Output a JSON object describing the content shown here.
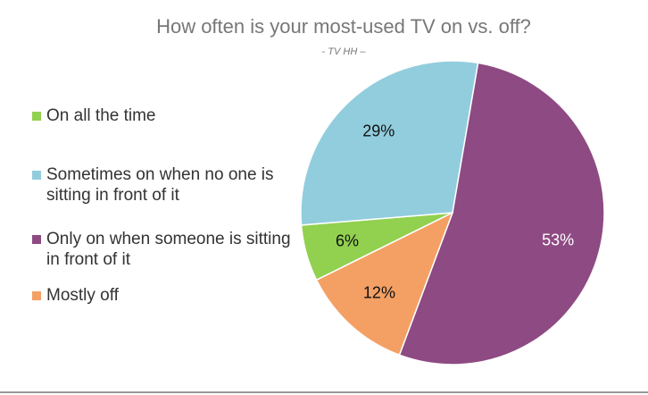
{
  "chart_data": {
    "type": "pie",
    "title": "How often is your most-used TV on vs. off?",
    "subtitle": "- TV HH –",
    "series": [
      {
        "name": "On all the time",
        "color": "#92d050",
        "values": [
          6
        ],
        "value_labels": [
          "6%"
        ]
      },
      {
        "name": "Sometimes on when no one is sitting in front of it",
        "color": "#92cddd",
        "values": [
          29
        ],
        "value_labels": [
          "29%"
        ]
      },
      {
        "name": "Only on when someone is sitting in front of it",
        "color": "#8e4a82",
        "values": [
          53
        ],
        "value_labels": [
          "53%"
        ]
      },
      {
        "name": "Mostly off",
        "color": "#f4a064",
        "values": [
          12
        ],
        "value_labels": [
          "12%"
        ]
      }
    ],
    "legend": "left"
  }
}
